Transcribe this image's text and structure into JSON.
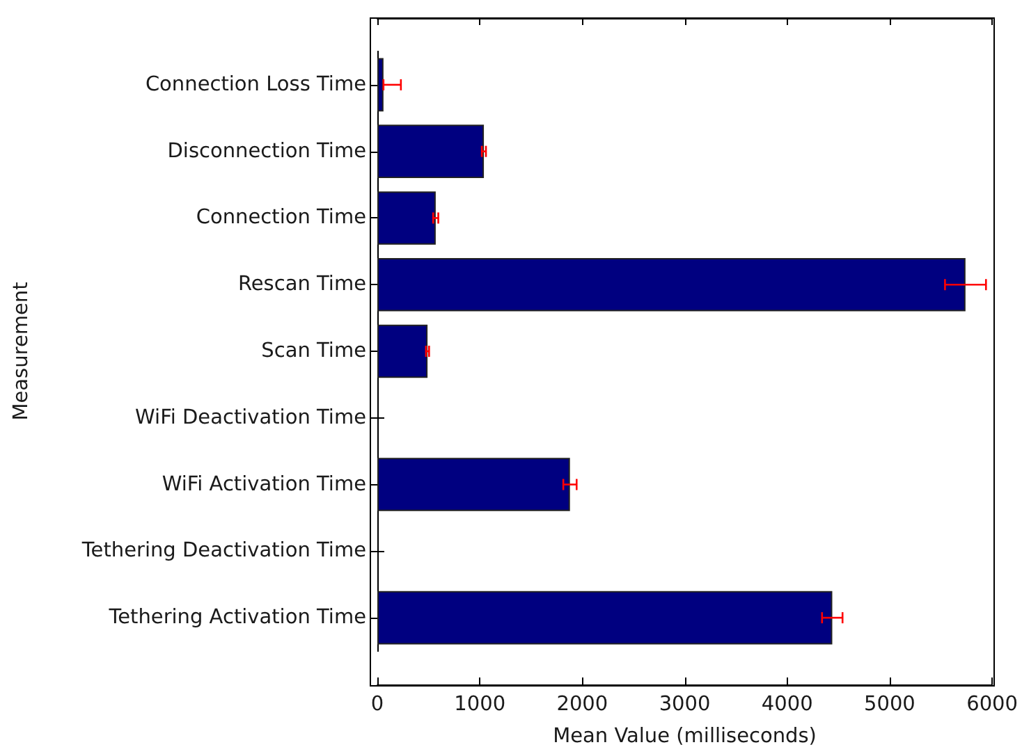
{
  "chart_data": {
    "type": "bar",
    "orientation": "horizontal",
    "xlabel": "Mean Value (milliseconds)",
    "ylabel": "Measurement",
    "categories": [
      "Connection Loss Time",
      "Disconnection Time",
      "Connection Time",
      "Rescan Time",
      "Scan Time",
      "WiFi Deactivation Time",
      "WiFi Activation Time",
      "Tethering Deactivation Time",
      "Tethering Activation Time"
    ],
    "values": [
      60,
      1040,
      570,
      5740,
      490,
      null,
      1880,
      null,
      4440
    ],
    "color": "#000080",
    "errors": [
      [
        60,
        230
      ],
      20,
      25,
      200,
      15,
      null,
      65,
      null,
      100
    ],
    "xlim": [
      0,
      6000
    ],
    "xticks": [
      0,
      1000,
      2000,
      3000,
      4000,
      5000,
      6000
    ],
    "grid": false
  }
}
